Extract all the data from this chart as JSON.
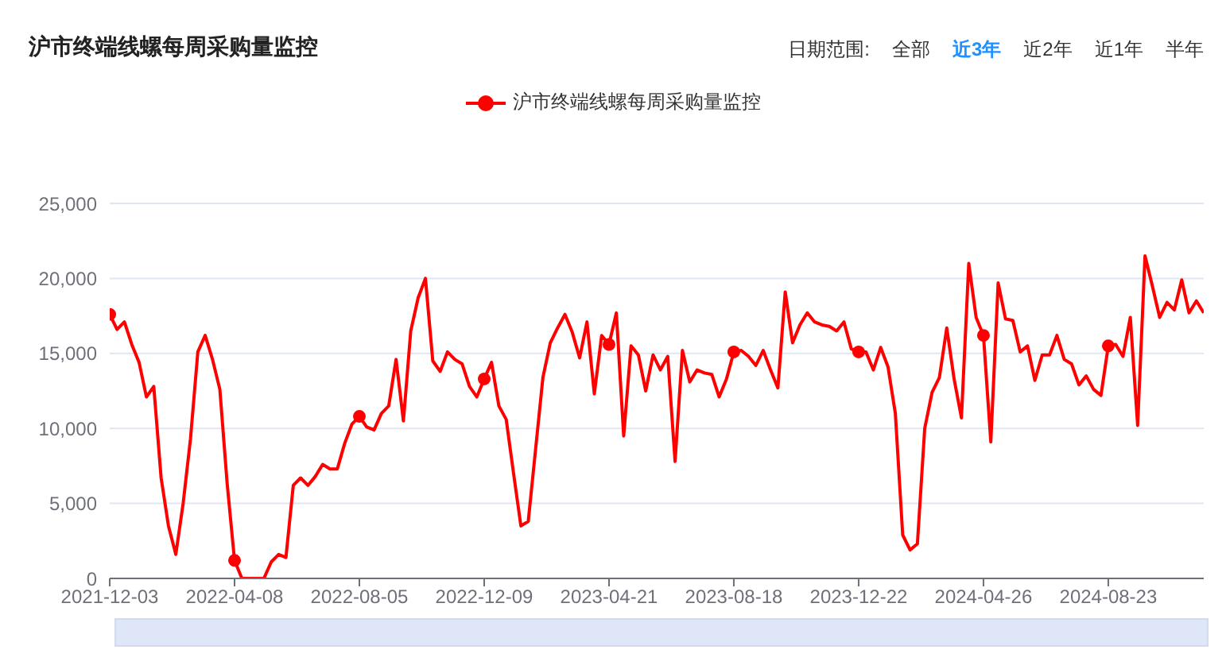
{
  "chart_data": {
    "type": "line",
    "title": "沪市终端线螺每周采购量监控",
    "annotations": [
      "日期范围:",
      "全部",
      "近3年",
      "近2年",
      "近1年",
      "半年"
    ],
    "categories": [
      "2021-12-03",
      null,
      null,
      null,
      null,
      null,
      null,
      null,
      null,
      null,
      null,
      null,
      null,
      null,
      null,
      null,
      null,
      "2022-04-08",
      null,
      null,
      null,
      null,
      null,
      null,
      null,
      null,
      null,
      null,
      null,
      null,
      null,
      null,
      null,
      null,
      "2022-08-05",
      null,
      null,
      null,
      null,
      null,
      null,
      null,
      null,
      null,
      null,
      null,
      null,
      null,
      null,
      null,
      null,
      "2022-12-09",
      null,
      null,
      null,
      null,
      null,
      null,
      null,
      null,
      null,
      null,
      null,
      null,
      null,
      null,
      null,
      null,
      "2023-04-21",
      null,
      null,
      null,
      null,
      null,
      null,
      null,
      null,
      null,
      null,
      null,
      null,
      null,
      null,
      null,
      null,
      "2023-08-18",
      null,
      null,
      null,
      null,
      null,
      null,
      null,
      null,
      null,
      null,
      null,
      null,
      null,
      null,
      null,
      null,
      "2023-12-22",
      null,
      null,
      null,
      null,
      null,
      null,
      null,
      null,
      null,
      null,
      null,
      null,
      null,
      null,
      null,
      null,
      "2024-04-26",
      null,
      null,
      null,
      null,
      null,
      null,
      null,
      null,
      null,
      null,
      null,
      null,
      null,
      null,
      null,
      null,
      "2024-08-23",
      null,
      null,
      null,
      null,
      null,
      null,
      null,
      null,
      null,
      null,
      null,
      null,
      null
    ],
    "series": [
      {
        "name": "沪市终端线螺每周采购量监控",
        "color": "#ff0000",
        "values": [
          17600,
          16600,
          17100,
          15600,
          14400,
          12100,
          12800,
          6700,
          3500,
          1600,
          5000,
          9300,
          15100,
          16200,
          14600,
          12600,
          6300,
          1200,
          0,
          0,
          0,
          0,
          1100,
          1600,
          1400,
          6200,
          6700,
          6200,
          6800,
          7600,
          7300,
          7300,
          9000,
          10300,
          10800,
          10100,
          9900,
          11000,
          11500,
          14600,
          10500,
          16500,
          18700,
          20000,
          14500,
          13800,
          15100,
          14600,
          14300,
          12800,
          12100,
          13300,
          14400,
          11500,
          10600,
          7000,
          3500,
          3800,
          8600,
          13400,
          15700,
          16700,
          17600,
          16400,
          14700,
          17100,
          12300,
          16200,
          15600,
          17700,
          9500,
          15500,
          14900,
          12500,
          14900,
          13900,
          14800,
          7800,
          15200,
          13100,
          13900,
          13700,
          13600,
          12100,
          13300,
          15100,
          15200,
          14800,
          14200,
          15200,
          13900,
          12700,
          19100,
          15700,
          16900,
          17700,
          17100,
          16900,
          16800,
          16500,
          17100,
          15300,
          15100,
          15100,
          13900,
          15400,
          14100,
          11000,
          2900,
          1900,
          2300,
          10000,
          12400,
          13400,
          16700,
          13300,
          10700,
          21000,
          17400,
          16200,
          9100,
          19700,
          17300,
          17200,
          15100,
          15500,
          13200,
          14900,
          14900,
          16200,
          14600,
          14300,
          12900,
          13500,
          12600,
          12200,
          15500,
          15600,
          14800,
          17400,
          10200,
          21500,
          19500,
          17400,
          18400,
          17900,
          19900,
          17700,
          18500,
          17700
        ]
      }
    ],
    "ylim": [
      0,
      25000
    ],
    "yticks": [
      0,
      {
        "value": 5000,
        "label": "5,000"
      },
      {
        "value": 10000,
        "label": "10,000"
      },
      {
        "value": 15000,
        "label": "15,000"
      },
      {
        "value": 20000,
        "label": "20,000"
      },
      {
        "value": 25000,
        "label": "25,000"
      }
    ],
    "grid": "y",
    "legend": "top",
    "line_style": "solid"
  }
}
